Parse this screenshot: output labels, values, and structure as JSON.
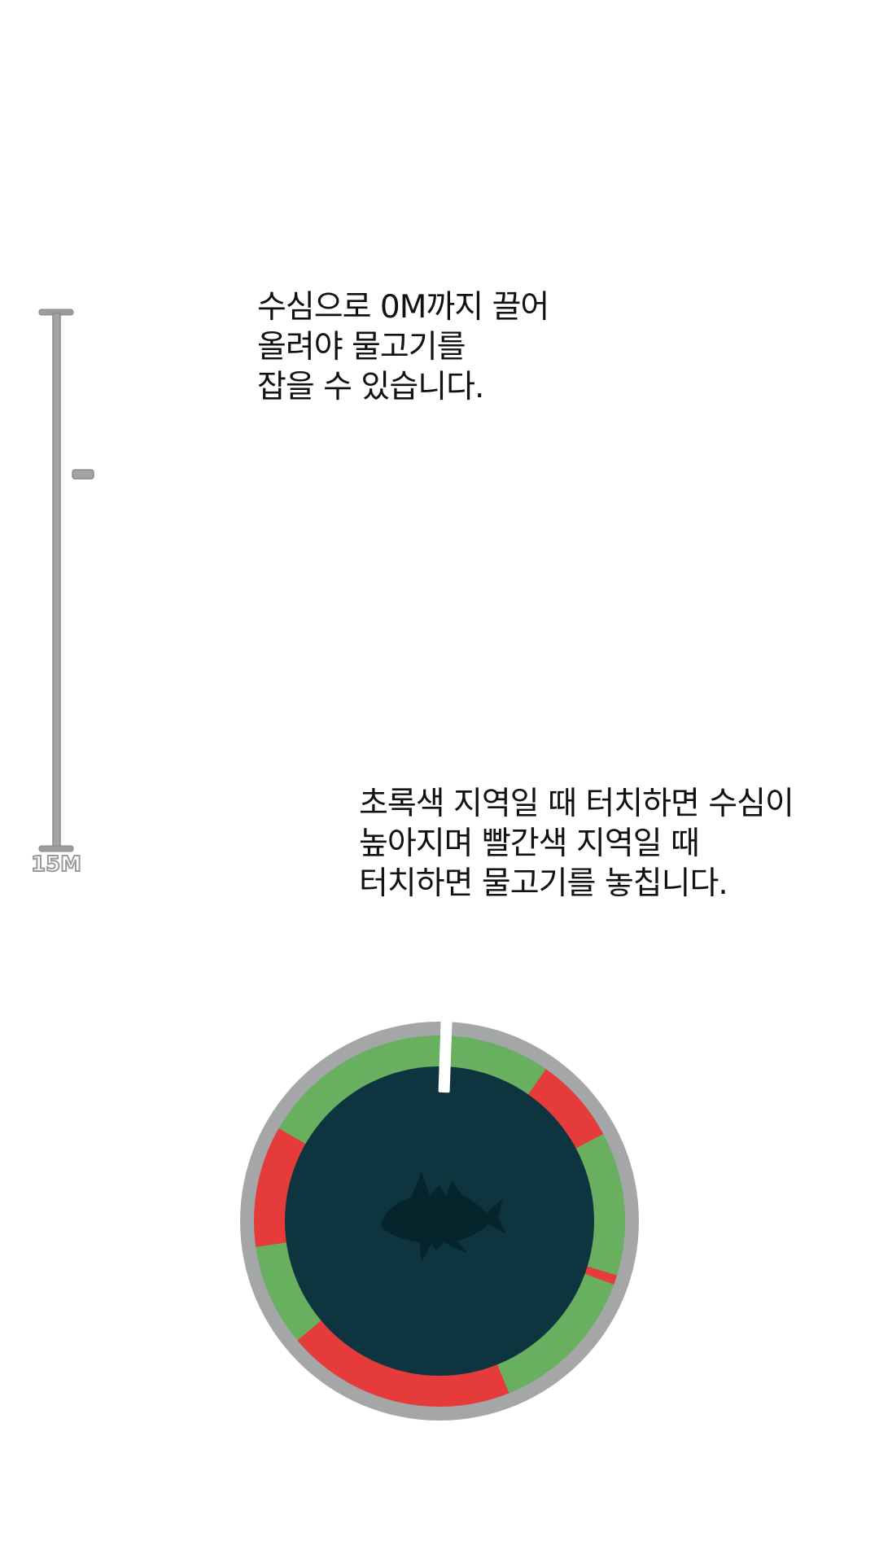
{
  "depth_gauge": {
    "max_depth_label": "15M",
    "max_depth_m": 15,
    "current_marker_fraction": 0.3
  },
  "tutorials": {
    "depth": {
      "lines": [
        "수심으로 0M까지 끌어",
        "올려야 물고기를",
        "잡을 수 있습니다."
      ]
    },
    "touch": {
      "lines": [
        "초록색 지역일 때 터치하면 수심이",
        "높아지며 빨간색 지역일 때",
        "터치하면 물고기를 놓칩니다."
      ]
    }
  },
  "reel": {
    "colors": {
      "outer_rim": "#a4a6a8",
      "inner_disc": "#0e3440",
      "fish_silhouette": "#06242c",
      "good_zone": "#68b060",
      "bad_zone": "#e53b3b",
      "needle": "#ffffff"
    },
    "needle_angle_deg": 2,
    "segments": [
      {
        "zone": "good",
        "start_deg": 300,
        "end_deg": 395
      },
      {
        "zone": "bad",
        "start_deg": 35,
        "end_deg": 62
      },
      {
        "zone": "good",
        "start_deg": 62,
        "end_deg": 107
      },
      {
        "zone": "bad",
        "start_deg": 107,
        "end_deg": 110
      },
      {
        "zone": "good",
        "start_deg": 110,
        "end_deg": 158
      },
      {
        "zone": "bad",
        "start_deg": 158,
        "end_deg": 230
      },
      {
        "zone": "good",
        "start_deg": 230,
        "end_deg": 262
      },
      {
        "zone": "bad",
        "start_deg": 262,
        "end_deg": 300
      }
    ]
  }
}
